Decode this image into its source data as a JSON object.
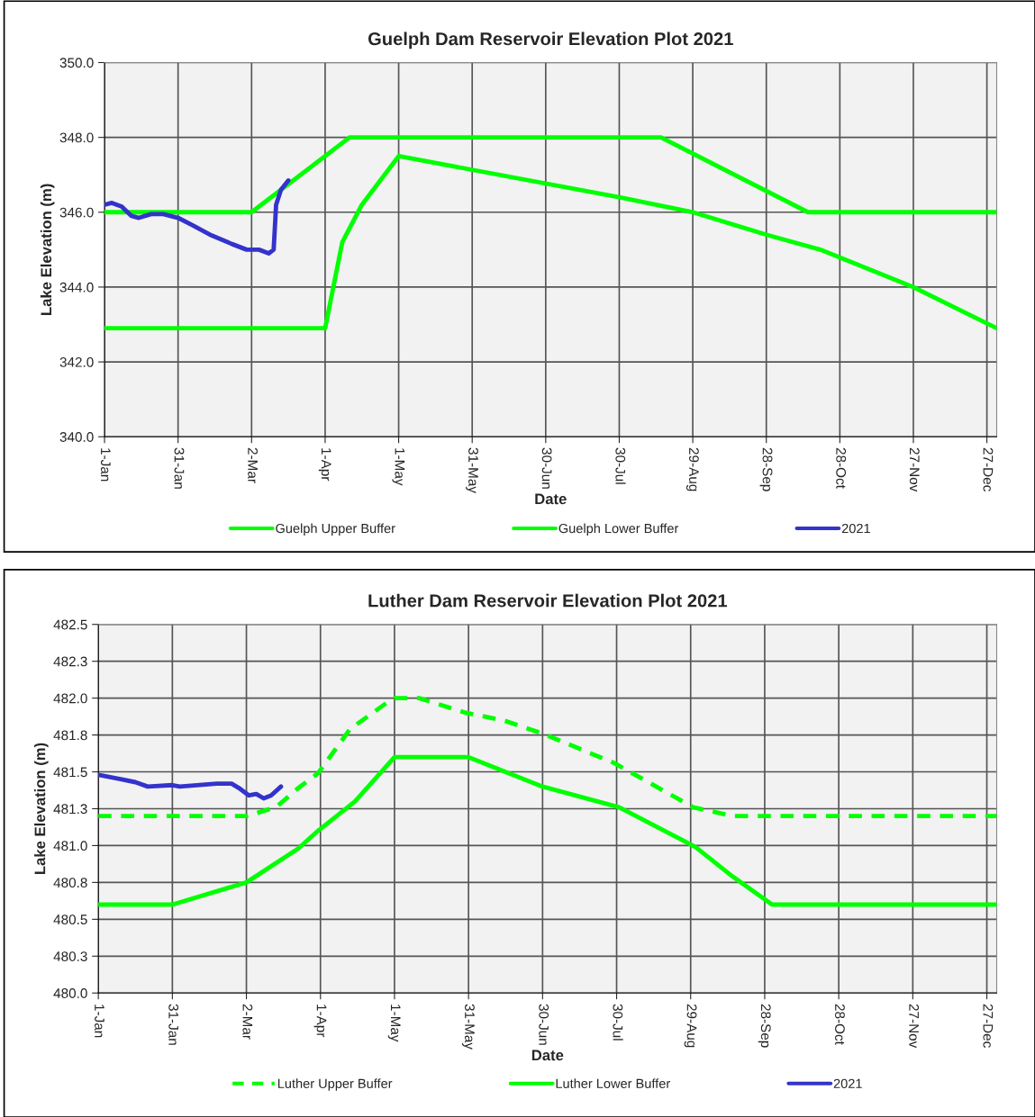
{
  "chart_data": [
    {
      "type": "line",
      "title": "Guelph Dam Reservoir Elevation Plot 2021",
      "xlabel": "Date",
      "ylabel": "Lake Elevation (m)",
      "xlim": [
        "2021-01-01",
        "2021-12-31"
      ],
      "xticks": [
        {
          "value": "2021-01-01",
          "label": "1-Jan"
        },
        {
          "value": "2021-01-31",
          "label": "31-Jan"
        },
        {
          "value": "2021-03-02",
          "label": "2-Mar"
        },
        {
          "value": "2021-04-01",
          "label": "1-Apr"
        },
        {
          "value": "2021-05-01",
          "label": "1-May"
        },
        {
          "value": "2021-05-31",
          "label": "31-May"
        },
        {
          "value": "2021-06-30",
          "label": "30-Jun"
        },
        {
          "value": "2021-07-30",
          "label": "30-Jul"
        },
        {
          "value": "2021-08-29",
          "label": "29-Aug"
        },
        {
          "value": "2021-09-28",
          "label": "28-Sep"
        },
        {
          "value": "2021-10-28",
          "label": "28-Oct"
        },
        {
          "value": "2021-11-27",
          "label": "27-Nov"
        },
        {
          "value": "2021-12-27",
          "label": "27-Dec"
        }
      ],
      "ylim": [
        340,
        350
      ],
      "yticks": [
        {
          "value": 340,
          "label": "340.0"
        },
        {
          "value": 342,
          "label": "342.0"
        },
        {
          "value": 344,
          "label": "344.0"
        },
        {
          "value": 346,
          "label": "346.0"
        },
        {
          "value": 348,
          "label": "348.0"
        },
        {
          "value": 350,
          "label": "350.0"
        }
      ],
      "grid": true,
      "legend": "bottom",
      "series": [
        {
          "name": "Guelph Upper Buffer",
          "color": "#00ff00",
          "line_style": "solid",
          "x": [
            "2021-01-01",
            "2021-03-02",
            "2021-04-11",
            "2021-08-16",
            "2021-10-15",
            "2021-12-31"
          ],
          "values": [
            346,
            346,
            348,
            348,
            346,
            346
          ]
        },
        {
          "name": "Guelph Lower Buffer",
          "color": "#00ff00",
          "line_style": "solid",
          "x": [
            "2021-01-01",
            "2021-04-01",
            "2021-04-08",
            "2021-04-16",
            "2021-05-01",
            "2021-07-30",
            "2021-08-29",
            "2021-09-28",
            "2021-10-20",
            "2021-11-27",
            "2021-12-31"
          ],
          "values": [
            342.9,
            342.9,
            345.2,
            346.2,
            347.5,
            346.4,
            346.0,
            345.4,
            345.0,
            344.0,
            342.9
          ]
        },
        {
          "name": "2021",
          "color": "#3333cc",
          "line_style": "solid",
          "x": [
            "2021-01-01",
            "2021-01-04",
            "2021-01-08",
            "2021-01-12",
            "2021-01-15",
            "2021-01-20",
            "2021-01-25",
            "2021-01-31",
            "2021-02-06",
            "2021-02-13",
            "2021-02-22",
            "2021-02-28",
            "2021-03-05",
            "2021-03-09",
            "2021-03-11",
            "2021-03-12",
            "2021-03-14",
            "2021-03-17"
          ],
          "values": [
            346.2,
            346.25,
            346.15,
            345.9,
            345.85,
            345.95,
            345.95,
            345.85,
            345.65,
            345.4,
            345.15,
            345.0,
            345.0,
            344.9,
            345.0,
            346.2,
            346.6,
            346.85
          ]
        }
      ]
    },
    {
      "type": "line",
      "title": "Luther Dam Reservoir Elevation Plot 2021",
      "xlabel": "Date",
      "ylabel": "Lake Elevation (m)",
      "xlim": [
        "2021-01-01",
        "2021-12-31"
      ],
      "xticks": [
        {
          "value": "2021-01-01",
          "label": "1-Jan"
        },
        {
          "value": "2021-01-31",
          "label": "31-Jan"
        },
        {
          "value": "2021-03-02",
          "label": "2-Mar"
        },
        {
          "value": "2021-04-01",
          "label": "1-Apr"
        },
        {
          "value": "2021-05-01",
          "label": "1-May"
        },
        {
          "value": "2021-05-31",
          "label": "31-May"
        },
        {
          "value": "2021-06-30",
          "label": "30-Jun"
        },
        {
          "value": "2021-07-30",
          "label": "30-Jul"
        },
        {
          "value": "2021-08-29",
          "label": "29-Aug"
        },
        {
          "value": "2021-09-28",
          "label": "28-Sep"
        },
        {
          "value": "2021-10-28",
          "label": "28-Oct"
        },
        {
          "value": "2021-11-27",
          "label": "27-Nov"
        },
        {
          "value": "2021-12-27",
          "label": "27-Dec"
        }
      ],
      "ylim": [
        480,
        482.5
      ],
      "yticks": [
        {
          "value": 480,
          "label": "480.0"
        },
        {
          "value": 480.25,
          "label": "480.3"
        },
        {
          "value": 480.5,
          "label": "480.5"
        },
        {
          "value": 480.75,
          "label": "480.8"
        },
        {
          "value": 481,
          "label": "481.0"
        },
        {
          "value": 481.25,
          "label": "481.3"
        },
        {
          "value": 481.5,
          "label": "481.5"
        },
        {
          "value": 481.75,
          "label": "481.8"
        },
        {
          "value": 482,
          "label": "482.0"
        },
        {
          "value": 482.25,
          "label": "482.3"
        },
        {
          "value": 482.5,
          "label": "482.5"
        }
      ],
      "grid": true,
      "legend": "bottom",
      "series": [
        {
          "name": "Luther Upper Buffer",
          "color": "#00ff00",
          "line_style": "dashed",
          "x": [
            "2021-01-01",
            "2021-03-02",
            "2021-03-14",
            "2021-03-23",
            "2021-03-31",
            "2021-04-13",
            "2021-04-28",
            "2021-05-01",
            "2021-05-11",
            "2021-05-30",
            "2021-06-14",
            "2021-06-30",
            "2021-07-29",
            "2021-08-30",
            "2021-09-15",
            "2021-12-31"
          ],
          "values": [
            481.2,
            481.2,
            481.26,
            481.39,
            481.49,
            481.79,
            481.97,
            482.0,
            482.0,
            481.9,
            481.85,
            481.76,
            481.56,
            481.26,
            481.2,
            481.2
          ]
        },
        {
          "name": "Luther Lower Buffer",
          "color": "#00ff00",
          "line_style": "solid",
          "x": [
            "2021-01-01",
            "2021-01-31",
            "2021-03-02",
            "2021-03-23",
            "2021-03-31",
            "2021-04-15",
            "2021-05-01",
            "2021-05-31",
            "2021-06-30",
            "2021-07-31",
            "2021-08-31",
            "2021-09-15",
            "2021-10-01",
            "2021-12-31"
          ],
          "values": [
            480.6,
            480.6,
            480.75,
            480.98,
            481.1,
            481.3,
            481.6,
            481.6,
            481.4,
            481.26,
            480.99,
            480.79,
            480.6,
            480.6
          ]
        },
        {
          "name": "2021",
          "color": "#3333cc",
          "line_style": "solid",
          "x": [
            "2021-01-01",
            "2021-01-10",
            "2021-01-16",
            "2021-01-21",
            "2021-01-31",
            "2021-02-03",
            "2021-02-18",
            "2021-02-24",
            "2021-02-27",
            "2021-03-03",
            "2021-03-06",
            "2021-03-09",
            "2021-03-12",
            "2021-03-16"
          ],
          "values": [
            481.48,
            481.45,
            481.43,
            481.4,
            481.41,
            481.4,
            481.42,
            481.42,
            481.39,
            481.34,
            481.35,
            481.32,
            481.34,
            481.4
          ]
        }
      ]
    }
  ]
}
